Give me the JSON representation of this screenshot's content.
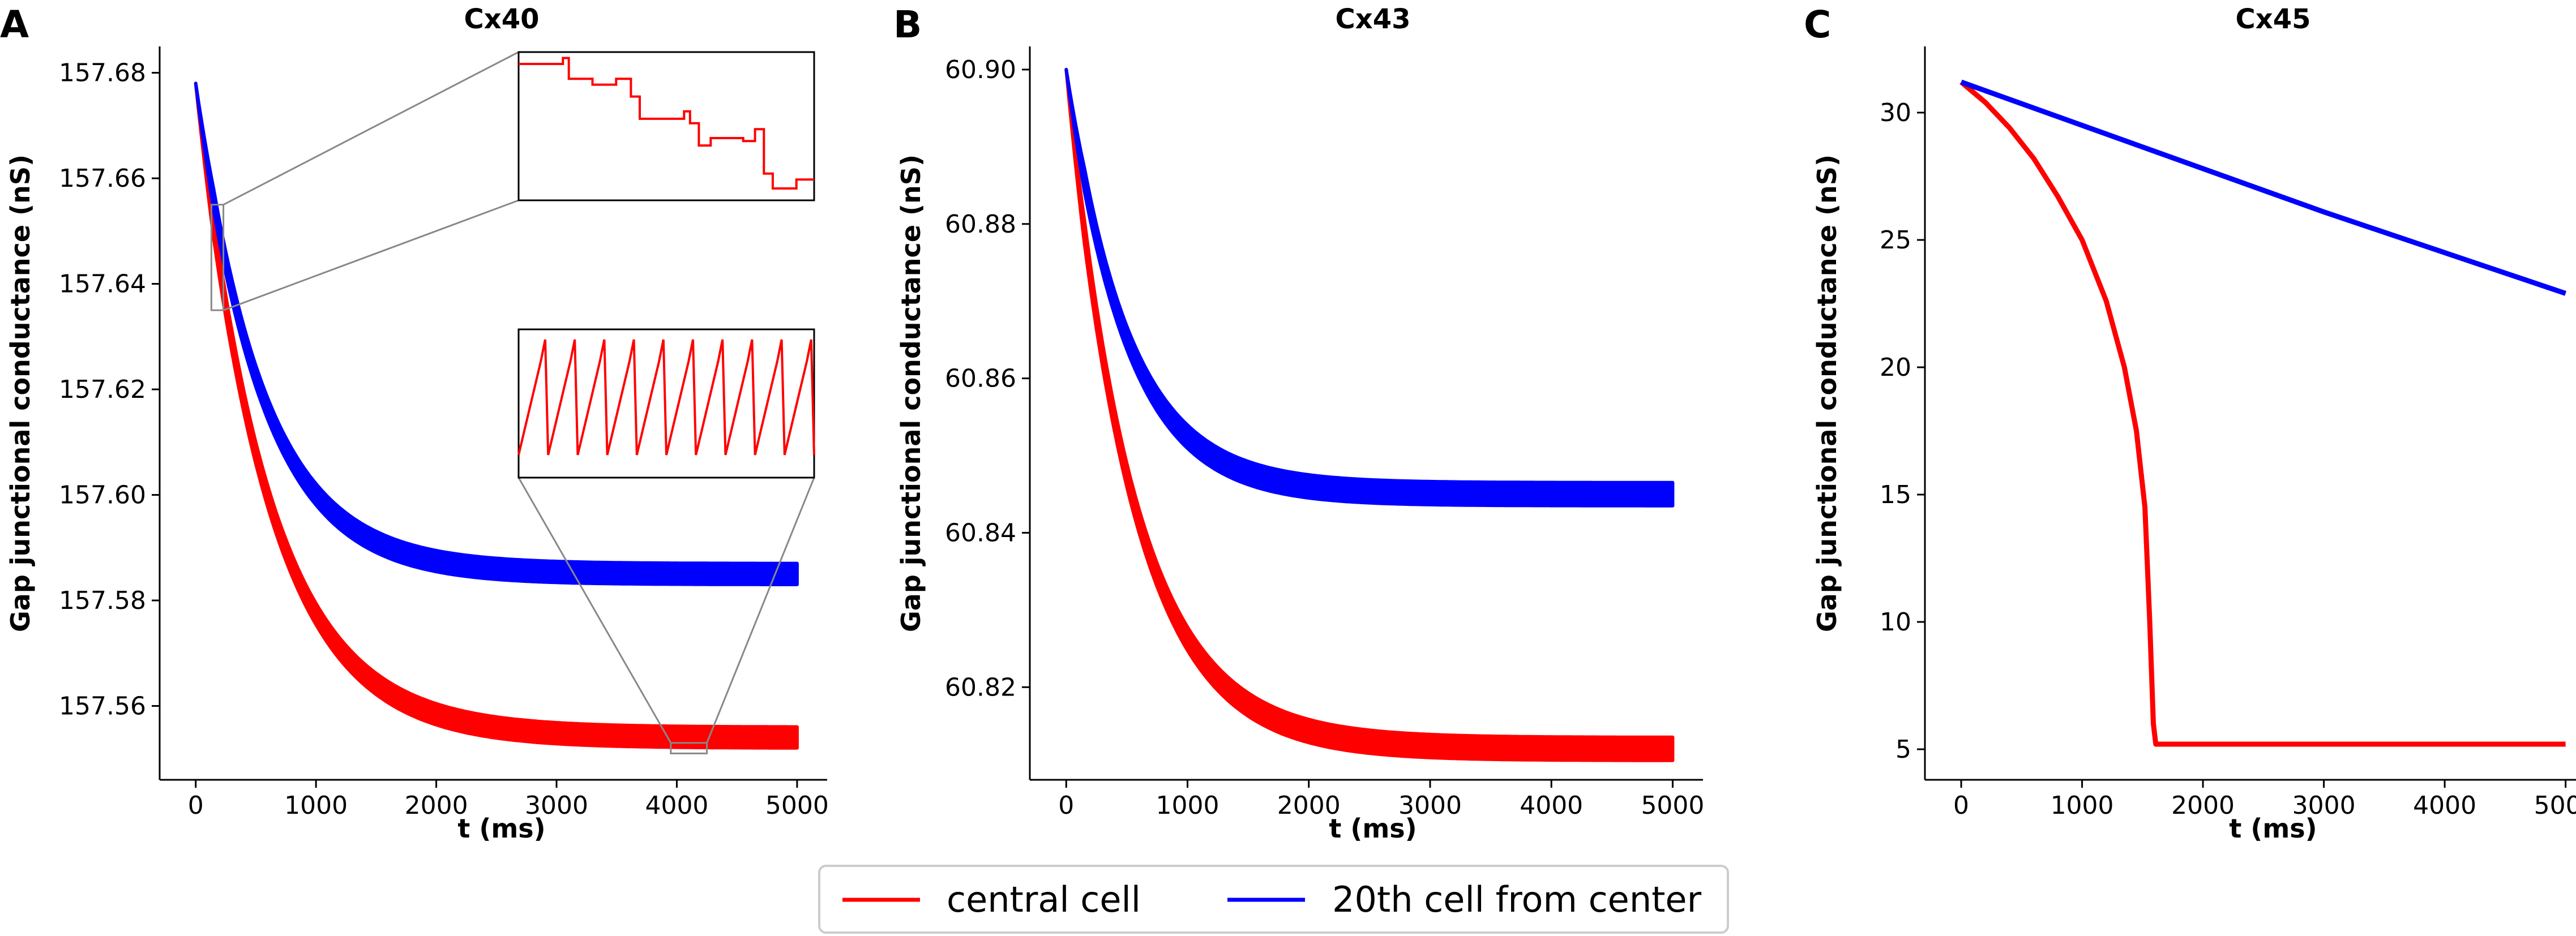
{
  "figure": {
    "legend": [
      {
        "name": "central cell",
        "color": "#ff0000"
      },
      {
        "name": "20th cell from center",
        "color": "#0000ff"
      }
    ]
  },
  "chart_data": [
    {
      "panel": "A",
      "type": "line",
      "title": "Cx40",
      "xlabel": "t (ms)",
      "ylabel": "Gap junctional conductance (nS)",
      "xlim": [
        -300,
        5250
      ],
      "ylim": [
        157.546,
        157.685
      ],
      "xticks": [
        0,
        1000,
        2000,
        3000,
        4000,
        5000
      ],
      "yticks": [
        157.56,
        157.58,
        157.6,
        157.62,
        157.64,
        157.66,
        157.68
      ],
      "ytick_labels": [
        "157.56",
        "157.58",
        "157.60",
        "157.62",
        "157.64",
        "157.66",
        "157.68"
      ],
      "series": [
        {
          "name": "central cell",
          "color": "#ff0000",
          "y0": 157.678,
          "yinf": 157.554,
          "tau": 600,
          "band": 0.004,
          "tmax": 5000
        },
        {
          "name": "20th cell from center",
          "color": "#0000ff",
          "y0": 157.678,
          "yinf": 157.585,
          "tau": 550,
          "band": 0.004,
          "tmax": 5000
        }
      ],
      "insets": [
        {
          "kind": "zoom-steps",
          "source_x": [
            130,
            230
          ],
          "source_y": [
            157.635,
            157.655
          ]
        },
        {
          "kind": "zoom-oscillation",
          "source_x": [
            3950,
            4250
          ],
          "source_y": [
            157.551,
            157.553
          ]
        }
      ]
    },
    {
      "panel": "B",
      "type": "line",
      "title": "Cx43",
      "xlabel": "t (ms)",
      "ylabel": "Gap junctional conductance (nS)",
      "xlim": [
        -300,
        5250
      ],
      "ylim": [
        60.808,
        60.903
      ],
      "xticks": [
        0,
        1000,
        2000,
        3000,
        4000,
        5000
      ],
      "yticks": [
        60.82,
        60.84,
        60.86,
        60.88,
        60.9
      ],
      "ytick_labels": [
        "60.82",
        "60.84",
        "60.86",
        "60.88",
        "60.90"
      ],
      "series": [
        {
          "name": "central cell",
          "color": "#ff0000",
          "y0": 60.9,
          "yinf": 60.812,
          "tau": 550,
          "band": 0.003,
          "tmax": 5000
        },
        {
          "name": "20th cell from center",
          "color": "#0000ff",
          "y0": 60.9,
          "yinf": 60.845,
          "tau": 500,
          "band": 0.003,
          "tmax": 5000
        }
      ]
    },
    {
      "panel": "C",
      "type": "line",
      "title": "Cx45",
      "xlabel": "t (ms)",
      "ylabel": "Gap junctional conductance (nS)",
      "xlim": [
        -300,
        5250
      ],
      "ylim": [
        3.8,
        32.6
      ],
      "xticks": [
        0,
        1000,
        2000,
        3000,
        4000,
        5000
      ],
      "yticks": [
        5,
        10,
        15,
        20,
        25,
        30
      ],
      "ytick_labels": [
        "5",
        "10",
        "15",
        "20",
        "25",
        "30"
      ],
      "series": [
        {
          "name": "central cell",
          "color": "#ff0000",
          "points": [
            [
              0,
              31.2
            ],
            [
              200,
              30.4
            ],
            [
              400,
              29.4
            ],
            [
              600,
              28.2
            ],
            [
              800,
              26.7
            ],
            [
              1000,
              25.0
            ],
            [
              1200,
              22.6
            ],
            [
              1350,
              20.0
            ],
            [
              1450,
              17.5
            ],
            [
              1520,
              14.5
            ],
            [
              1560,
              10.0
            ],
            [
              1590,
              6.0
            ],
            [
              1610,
              5.2
            ],
            [
              5000,
              5.2
            ]
          ]
        },
        {
          "name": "20th cell from center",
          "color": "#0000ff",
          "points": [
            [
              0,
              31.2
            ],
            [
              1000,
              29.5
            ],
            [
              2000,
              27.8
            ],
            [
              3000,
              26.1
            ],
            [
              4000,
              24.5
            ],
            [
              5000,
              22.9
            ]
          ]
        }
      ]
    }
  ]
}
